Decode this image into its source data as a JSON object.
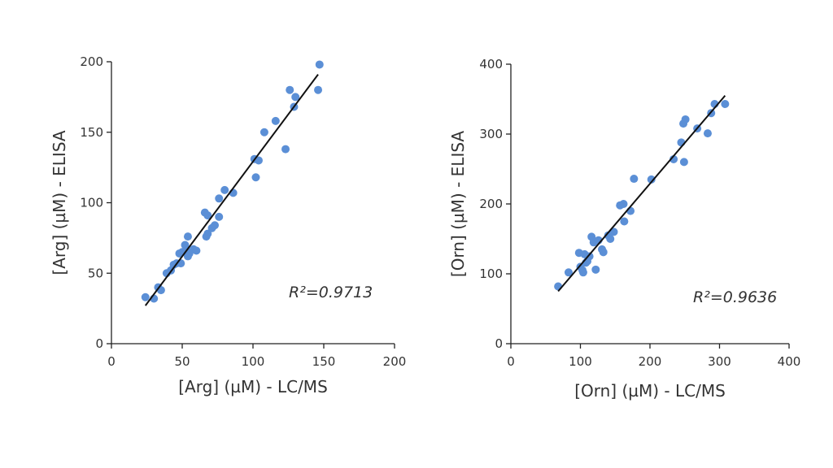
{
  "chart_data": [
    {
      "type": "scatter",
      "xlabel": "[Arg] (µM) - LC/MS",
      "ylabel": "[Arg] (µM) - ELISA",
      "annotation": "R²=0.9713",
      "xlim": [
        0,
        200
      ],
      "ylim": [
        0,
        200
      ],
      "xticks": [
        "0",
        "50",
        "100",
        "150",
        "200"
      ],
      "yticks": [
        "0",
        "50",
        "100",
        "150",
        "200"
      ],
      "grid": false,
      "point_color": "#5b8fd6",
      "fit_line": {
        "x": [
          24,
          146
        ],
        "y": [
          27,
          191
        ]
      },
      "points": [
        [
          24,
          33
        ],
        [
          30,
          32
        ],
        [
          33,
          40
        ],
        [
          35,
          38
        ],
        [
          39,
          50
        ],
        [
          42,
          52
        ],
        [
          44,
          56
        ],
        [
          46,
          57
        ],
        [
          48,
          64
        ],
        [
          49,
          57
        ],
        [
          50,
          65
        ],
        [
          52,
          70
        ],
        [
          53,
          66
        ],
        [
          54,
          62
        ],
        [
          54,
          76
        ],
        [
          55,
          64
        ],
        [
          58,
          67
        ],
        [
          60,
          66
        ],
        [
          66,
          93
        ],
        [
          67,
          76
        ],
        [
          68,
          78
        ],
        [
          68,
          91
        ],
        [
          71,
          82
        ],
        [
          73,
          84
        ],
        [
          76,
          90
        ],
        [
          76,
          103
        ],
        [
          80,
          109
        ],
        [
          86,
          107
        ],
        [
          101,
          131
        ],
        [
          102,
          118
        ],
        [
          104,
          130
        ],
        [
          108,
          150
        ],
        [
          116,
          158
        ],
        [
          123,
          138
        ],
        [
          126,
          180
        ],
        [
          129,
          168
        ],
        [
          130,
          175
        ],
        [
          146,
          180
        ],
        [
          147,
          198
        ]
      ]
    },
    {
      "type": "scatter",
      "xlabel": "[Orn] (µM) - LC/MS",
      "ylabel": "[Orn] (µM) - ELISA",
      "annotation": "R²=0.9636",
      "xlim": [
        0,
        400
      ],
      "ylim": [
        0,
        400
      ],
      "xticks": [
        "0",
        "100",
        "200",
        "300",
        "400"
      ],
      "yticks": [
        "0",
        "100",
        "200",
        "300",
        "400"
      ],
      "grid": false,
      "point_color": "#5b8fd6",
      "fit_line": {
        "x": [
          68,
          308
        ],
        "y": [
          75,
          355
        ]
      },
      "points": [
        [
          68,
          82
        ],
        [
          83,
          102
        ],
        [
          98,
          130
        ],
        [
          100,
          110
        ],
        [
          103,
          105
        ],
        [
          104,
          102
        ],
        [
          106,
          128
        ],
        [
          108,
          116
        ],
        [
          110,
          118
        ],
        [
          113,
          125
        ],
        [
          116,
          153
        ],
        [
          119,
          145
        ],
        [
          122,
          106
        ],
        [
          126,
          148
        ],
        [
          131,
          135
        ],
        [
          133,
          131
        ],
        [
          140,
          155
        ],
        [
          143,
          150
        ],
        [
          148,
          160
        ],
        [
          157,
          198
        ],
        [
          162,
          200
        ],
        [
          163,
          175
        ],
        [
          172,
          190
        ],
        [
          177,
          236
        ],
        [
          202,
          235
        ],
        [
          234,
          264
        ],
        [
          245,
          288
        ],
        [
          248,
          315
        ],
        [
          249,
          260
        ],
        [
          251,
          321
        ],
        [
          268,
          308
        ],
        [
          283,
          301
        ],
        [
          288,
          330
        ],
        [
          293,
          343
        ],
        [
          308,
          343
        ]
      ]
    }
  ]
}
